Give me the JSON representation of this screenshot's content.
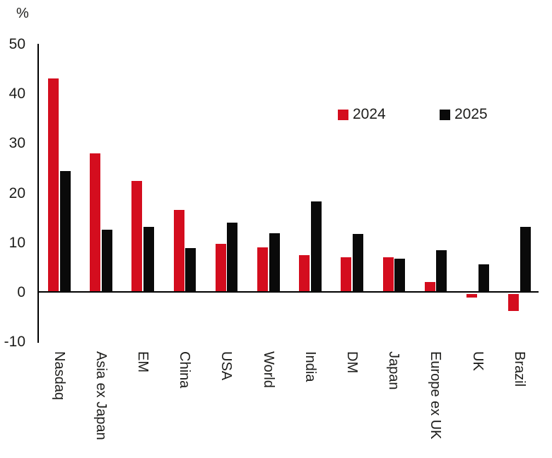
{
  "chart": {
    "unit_label": "%",
    "legend": [
      {
        "label": "2024",
        "color": "#d40d1e"
      },
      {
        "label": "2025",
        "color": "#0a0a0a"
      }
    ]
  },
  "chart_data": {
    "type": "bar",
    "title": "",
    "xlabel": "",
    "ylabel": "%",
    "categories": [
      "Nasdaq",
      "Asia ex Japan",
      "EM",
      "China",
      "USA",
      "World",
      "India",
      "DM",
      "Japan",
      "Europe ex UK",
      "UK",
      "Brazil"
    ],
    "series": [
      {
        "name": "2024",
        "color": "#d40d1e",
        "values": [
          43.2,
          28.0,
          22.5,
          16.7,
          9.8,
          9.1,
          7.5,
          7.1,
          7.1,
          2.1,
          -0.8,
          -3.5
        ]
      },
      {
        "name": "2025",
        "color": "#0a0a0a",
        "values": [
          24.5,
          12.7,
          13.2,
          9.0,
          14.1,
          11.9,
          18.3,
          11.8,
          6.8,
          8.6,
          5.7,
          13.3
        ]
      }
    ],
    "ylim": [
      -10,
      50
    ],
    "yticks": [
      50,
      40,
      30,
      20,
      10,
      0,
      -10
    ],
    "grid": false,
    "legend_position": "inside-upper-right",
    "bar_orientation": "vertical",
    "category_label_rotation_deg": 90
  }
}
